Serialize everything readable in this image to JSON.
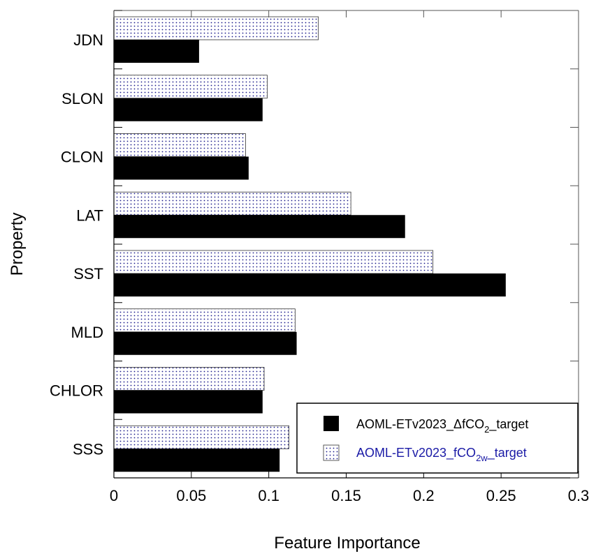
{
  "chart_data": {
    "type": "bar",
    "orientation": "horizontal",
    "title": "",
    "xlabel": "Feature Importance",
    "ylabel": "Property",
    "xlim": [
      0,
      0.3
    ],
    "xticks": [
      "0",
      "0.05",
      "0.1",
      "0.15",
      "0.2",
      "0.25",
      "0.3"
    ],
    "categories": [
      "JDN",
      "SLON",
      "CLON",
      "LAT",
      "SST",
      "MLD",
      "CHLOR",
      "SSS"
    ],
    "series": [
      {
        "name": "AOML-ETv2023_ΔfCO2_target",
        "legend_main": "AOML-ETv2023_ΔfCO",
        "legend_sub": "2",
        "legend_tail": "_target",
        "fill": "solid-black",
        "values": [
          0.055,
          0.096,
          0.087,
          0.188,
          0.253,
          0.118,
          0.096,
          0.107
        ]
      },
      {
        "name": "AOML-ETv2023_fCO2w_target",
        "legend_main": "AOML-ETv2023_fCO",
        "legend_sub": "2w",
        "legend_tail": "_target",
        "fill": "dotted-blue",
        "values": [
          0.132,
          0.099,
          0.085,
          0.153,
          0.206,
          0.117,
          0.097,
          0.113
        ]
      }
    ],
    "grid": false,
    "legend_position": "bottom-right",
    "colors": {
      "series1": "#000000",
      "series2_dots": "#1c1c8c",
      "series2_text": "#1a1aa6"
    }
  }
}
